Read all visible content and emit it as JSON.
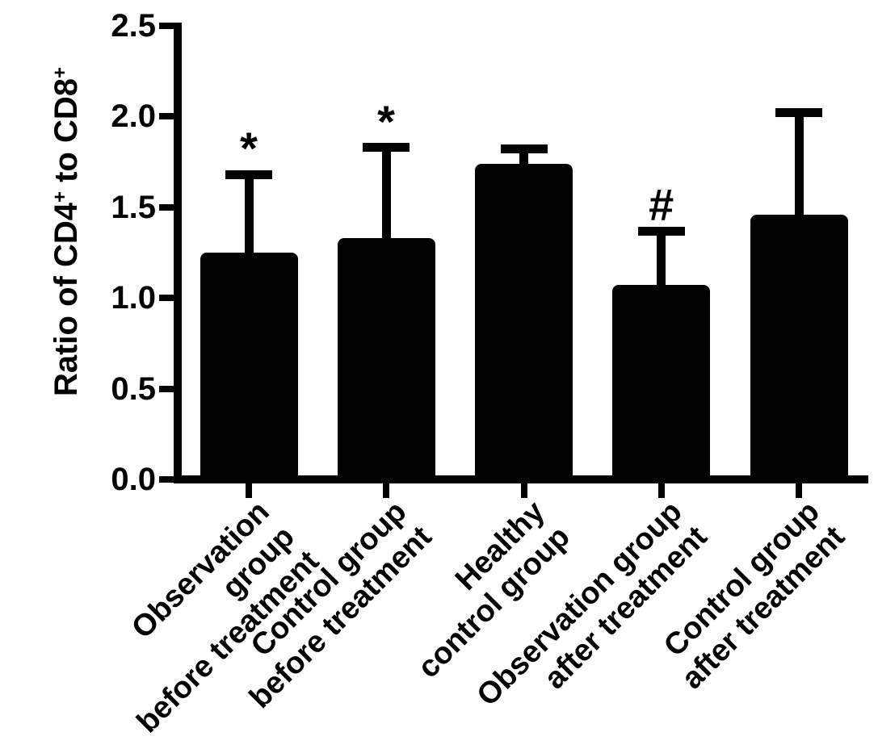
{
  "figure": {
    "background": "#ffffff",
    "ink": "#000000"
  },
  "y_title": {
    "base1": "Ratio of CD4",
    "sup1": "+",
    "base2": " to CD8",
    "sup2": "+"
  },
  "y_axis": {
    "ticks": [
      "0.0",
      "0.5",
      "1.0",
      "1.5",
      "2.0",
      "2.5"
    ],
    "min": 0,
    "max": 2.5,
    "step": 0.5
  },
  "chart_data": {
    "type": "bar",
    "title": "",
    "xlabel": "",
    "ylabel": "Ratio of CD4+ to CD8+",
    "ylim": [
      0,
      2.5
    ],
    "ytick_step": 0.5,
    "grid": false,
    "legend": false,
    "bar_color": "#000000",
    "categories": [
      "Observation group\nbefore treatment",
      "Control group\nbefore treatment",
      "Healthy\ncontrol group",
      "Observation group\nafter treatment",
      "Control group\nafter treatment"
    ],
    "values": [
      1.25,
      1.33,
      1.74,
      1.07,
      1.46
    ],
    "error_plus": [
      0.43,
      0.5,
      0.08,
      0.3,
      0.56
    ],
    "annotations": [
      "*",
      "*",
      "",
      "#",
      ""
    ]
  }
}
